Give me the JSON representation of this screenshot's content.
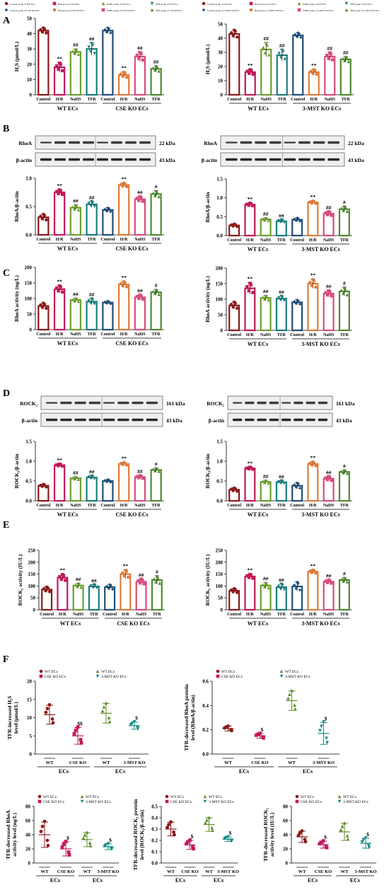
{
  "legend_top": [
    "Control group of WT ECs",
    "H/R group of WT ECs",
    "NaHS group of WT ECs",
    "TFR group of WT ECs",
    "Control group of CSE KO ECs",
    "H/R group of CSE KO ECs",
    "NaHS group of CSE KO ECs",
    "TFR group of CSE KO ECs",
    "Control group of WT ECs",
    "H/R group of WT ECs",
    "NaHS group of WT ECs",
    "TFR group of WT ECs",
    "Control group of 3-MST KO ECs",
    "H/R group of 3-MST KO ECs",
    "NaHS group of 3-MST KO ECs",
    "TFR group of 3-MST KO ECs"
  ],
  "panel_letters": [
    "A",
    "B",
    "C",
    "D",
    "E",
    "F"
  ],
  "group_labels": [
    "Control",
    "H/R",
    "NaHS",
    "TFR",
    "Control",
    "H/R",
    "NaHS",
    "TFR"
  ],
  "colors": {
    "wt_control": "#8B1A1A",
    "wt_hr": "#C2185B",
    "wt_nahs": "#6D9E2E",
    "wt_tfr": "#1B7D7D",
    "ko_control": "#1F4E79",
    "ko_hr": "#E07B39",
    "ko_nahs": "#D94C7E",
    "ko_tfr": "#4E8A2E"
  },
  "blots": [
    {
      "protein": "RhoA",
      "kda": "22 kDa",
      "loading": "β-actin",
      "loading_kda": "43 kDa"
    },
    {
      "protein": "RhoA",
      "kda": "22 kDa",
      "loading": "β-actin",
      "loading_kda": "43 kDa"
    },
    {
      "protein": "ROCK₂",
      "kda": "161 kDa",
      "loading": "β-actin",
      "loading_kda": "43 kDa"
    },
    {
      "protein": "ROCK₂",
      "kda": "161 kDa",
      "loading": "β-actin",
      "loading_kda": "43 kDa"
    }
  ],
  "chart_data": [
    {
      "id": "A_left",
      "type": "bar",
      "ylabel": "H₂S (μmol/L)",
      "ylim": [
        0,
        50
      ],
      "yticks": [
        0,
        10,
        20,
        30,
        40,
        50
      ],
      "categories": [
        "Control",
        "H/R",
        "NaHS",
        "TFR",
        "Control",
        "H/R",
        "NaHS",
        "TFR"
      ],
      "values": [
        42,
        18,
        28,
        30,
        42,
        13,
        25,
        17
      ],
      "errors": [
        2,
        3,
        2,
        4,
        2,
        2,
        3,
        2
      ],
      "marks": [
        "",
        "**",
        "##",
        "##",
        "",
        "**",
        "##",
        "##"
      ],
      "groups": [
        "WT ECs",
        "CSE KO ECs"
      ]
    },
    {
      "id": "A_right",
      "type": "bar",
      "ylabel": "H₂S (μmol/L)",
      "ylim": [
        0,
        50
      ],
      "yticks": [
        0,
        10,
        20,
        30,
        40,
        50
      ],
      "categories": [
        "Control",
        "H/R",
        "NaHS",
        "TFR",
        "Control",
        "H/R",
        "NaHS",
        "TFR"
      ],
      "values": [
        43,
        16,
        32,
        28,
        42,
        16,
        27,
        25
      ],
      "errors": [
        3,
        2,
        5,
        4,
        2,
        2,
        3,
        2
      ],
      "marks": [
        "",
        "**",
        "##",
        "##",
        "",
        "**",
        "##",
        "##"
      ],
      "groups": [
        "WT ECs",
        "3-MST KO ECs"
      ]
    },
    {
      "id": "B_left",
      "type": "bar",
      "ylabel": "RhoA/β-actin",
      "ylim": [
        0,
        1.0
      ],
      "yticks": [
        0.0,
        0.5,
        1.0
      ],
      "categories": [
        "Control",
        "H/R",
        "NaHS",
        "TFR",
        "Control",
        "H/R",
        "NaHS",
        "TFR"
      ],
      "values": [
        0.31,
        0.75,
        0.48,
        0.54,
        0.44,
        0.88,
        0.63,
        0.72
      ],
      "errors": [
        0.06,
        0.05,
        0.05,
        0.05,
        0.04,
        0.04,
        0.05,
        0.06
      ],
      "marks": [
        "",
        "**",
        "##",
        "##",
        "",
        "**",
        "##",
        "#"
      ],
      "groups": [
        "WT ECs",
        "CSE KO ECs"
      ]
    },
    {
      "id": "B_right",
      "type": "bar",
      "ylabel": "RhoA/β-actin",
      "ylim": [
        0,
        1.5
      ],
      "yticks": [
        0.0,
        0.5,
        1.0,
        1.5
      ],
      "categories": [
        "Control",
        "H/R",
        "NaHS",
        "TFR",
        "Control",
        "H/R",
        "NaHS",
        "TFR"
      ],
      "values": [
        0.27,
        0.82,
        0.43,
        0.38,
        0.42,
        0.88,
        0.58,
        0.7
      ],
      "errors": [
        0.04,
        0.04,
        0.04,
        0.04,
        0.05,
        0.04,
        0.06,
        0.08
      ],
      "marks": [
        "",
        "**",
        "##",
        "##",
        "",
        "**",
        "##",
        "#"
      ],
      "groups": [
        "WT ECs",
        "3-MST KO ECs"
      ]
    },
    {
      "id": "C_left",
      "type": "bar",
      "ylabel": "RhoA activity (ng/L)",
      "ylim": [
        0,
        200
      ],
      "yticks": [
        0,
        50,
        100,
        150,
        200
      ],
      "categories": [
        "Control",
        "H/R",
        "NaHS",
        "TFR",
        "Control",
        "H/R",
        "NaHS",
        "TFR"
      ],
      "values": [
        76,
        130,
        95,
        90,
        87,
        145,
        104,
        120
      ],
      "errors": [
        10,
        12,
        6,
        10,
        5,
        10,
        8,
        9
      ],
      "marks": [
        "",
        "**",
        "##",
        "##",
        "",
        "**",
        "##",
        "#"
      ],
      "groups": [
        "WT ECs",
        "CSE KO ECs"
      ]
    },
    {
      "id": "C_right",
      "type": "bar",
      "ylabel": "RhoA activity (ng/L)",
      "ylim": [
        0,
        200
      ],
      "yticks": [
        0,
        50,
        100,
        150,
        200
      ],
      "categories": [
        "Control",
        "H/R",
        "NaHS",
        "TFR",
        "Control",
        "H/R",
        "NaHS",
        "TFR"
      ],
      "values": [
        80,
        135,
        104,
        102,
        90,
        150,
        118,
        125
      ],
      "errors": [
        12,
        18,
        8,
        8,
        8,
        15,
        10,
        14
      ],
      "marks": [
        "",
        "**",
        "##",
        "##",
        "",
        "**",
        "##",
        "#"
      ],
      "groups": [
        "WT ECs",
        "3-MST KO ECs"
      ]
    },
    {
      "id": "D_left",
      "type": "bar",
      "ylabel": "ROCK₂/β-actin",
      "ylim": [
        0,
        1.5
      ],
      "yticks": [
        0.0,
        0.5,
        1.0,
        1.5
      ],
      "categories": [
        "Control",
        "H/R",
        "NaHS",
        "TFR",
        "Control",
        "H/R",
        "NaHS",
        "TFR"
      ],
      "values": [
        0.38,
        0.9,
        0.57,
        0.59,
        0.5,
        0.93,
        0.6,
        0.78
      ],
      "errors": [
        0.04,
        0.03,
        0.04,
        0.04,
        0.04,
        0.04,
        0.04,
        0.05
      ],
      "marks": [
        "",
        "**",
        "##",
        "##",
        "",
        "**",
        "##",
        "#"
      ],
      "groups": [
        "WT ECs",
        "CSE KO ECs"
      ]
    },
    {
      "id": "D_right",
      "type": "bar",
      "ylabel": "ROCK₂/β-actin",
      "ylim": [
        0,
        1.5
      ],
      "yticks": [
        0.0,
        0.5,
        1.0,
        1.5
      ],
      "categories": [
        "Control",
        "H/R",
        "NaHS",
        "TFR",
        "Control",
        "H/R",
        "NaHS",
        "TFR"
      ],
      "values": [
        0.28,
        0.82,
        0.48,
        0.47,
        0.38,
        0.93,
        0.56,
        0.73
      ],
      "errors": [
        0.05,
        0.03,
        0.04,
        0.04,
        0.08,
        0.06,
        0.06,
        0.05
      ],
      "marks": [
        "",
        "**",
        "##",
        "##",
        "",
        "**",
        "##",
        "#"
      ],
      "groups": [
        "WT ECs",
        "3-MST KO ECs"
      ]
    },
    {
      "id": "E_left",
      "type": "bar",
      "ylabel": "ROCK₂ activity (IU/L)",
      "ylim": [
        0,
        250
      ],
      "yticks": [
        0,
        50,
        100,
        150,
        200,
        250
      ],
      "categories": [
        "Control",
        "H/R",
        "NaHS",
        "TFR",
        "Control",
        "H/R",
        "NaHS",
        "TFR"
      ],
      "values": [
        85,
        135,
        102,
        98,
        95,
        150,
        118,
        125
      ],
      "errors": [
        12,
        15,
        10,
        8,
        12,
        18,
        12,
        18
      ],
      "marks": [
        "",
        "**",
        "##",
        "##",
        "",
        "**",
        "##",
        "#"
      ],
      "groups": [
        "WT ECs",
        "CSE KO ECs"
      ]
    },
    {
      "id": "E_right",
      "type": "bar",
      "ylabel": "ROCK₂ activity (IU/L)",
      "ylim": [
        0,
        250
      ],
      "yticks": [
        0,
        50,
        100,
        150,
        200,
        250
      ],
      "categories": [
        "Control",
        "H/R",
        "NaHS",
        "TFR",
        "Control",
        "H/R",
        "NaHS",
        "TFR"
      ],
      "values": [
        80,
        140,
        102,
        95,
        98,
        160,
        118,
        125
      ],
      "errors": [
        10,
        10,
        12,
        14,
        20,
        8,
        8,
        10
      ],
      "marks": [
        "",
        "**",
        "##",
        "##",
        "",
        "**",
        "##",
        "#"
      ],
      "groups": [
        "WT ECs",
        "3-MST KO ECs"
      ]
    },
    {
      "id": "F1",
      "type": "scatter",
      "ylabel": "TFR-increased H₂S level (μmol/L)",
      "ylim": [
        0,
        20
      ],
      "yticks": [
        0,
        5,
        10,
        15,
        20
      ],
      "legend": [
        "WT ECs",
        "CSE KO ECs",
        "WT ECs",
        "3-MST KO ECs"
      ],
      "categories": [
        "WT",
        "CSE KO",
        "WT",
        "3-MST KO"
      ],
      "group_labels": [
        "ECs",
        "ECs"
      ],
      "means": [
        10.8,
        5.0,
        11.2,
        7.8
      ],
      "sd": [
        2.6,
        2.3,
        2.7,
        1.0
      ],
      "marks": [
        "",
        "$$",
        "",
        "$"
      ]
    },
    {
      "id": "F2",
      "type": "scatter",
      "ylabel": "TFR-decreased RhoA protein level (RhoA/β-actin)",
      "ylim": [
        0,
        0.6
      ],
      "yticks": [
        0.0,
        0.2,
        0.4,
        0.6
      ],
      "legend": [
        "WT ECs",
        "CSE KO ECs",
        "WT ECs",
        "3-MST KO ECs"
      ],
      "categories": [
        "WT",
        "CSE KO",
        "WT",
        "3-MST KO"
      ],
      "group_labels": [
        "ECs",
        "ECs"
      ],
      "means": [
        0.21,
        0.15,
        0.44,
        0.17
      ],
      "sd": [
        0.02,
        0.02,
        0.08,
        0.09
      ],
      "marks": [
        "",
        "$",
        "",
        "$"
      ]
    },
    {
      "id": "F3",
      "type": "scatter",
      "ylabel": "TFR-decreased RhoA activity level (ng/L)",
      "ylim": [
        0,
        80
      ],
      "yticks": [
        0,
        20,
        40,
        60,
        80
      ],
      "legend": [
        "WT ECs",
        "CSE KO ECs",
        "WT ECs",
        "3-MST KO ECs"
      ],
      "categories": [
        "WT",
        "CSE KO",
        "WT",
        "3-MST KO"
      ],
      "group_labels": [
        "ECs",
        "ECs"
      ],
      "means": [
        40,
        20,
        33,
        23
      ],
      "sd": [
        18,
        10,
        10,
        4
      ],
      "marks": [
        "",
        "$",
        "",
        "$"
      ]
    },
    {
      "id": "F4",
      "type": "scatter",
      "ylabel": "TFR-decreased ROCK₂ protein level (ROCK₂/β-actin)",
      "ylim": [
        0,
        0.5
      ],
      "yticks": [
        0.0,
        0.1,
        0.2,
        0.3,
        0.4,
        0.5
      ],
      "legend": [
        "WT ECs",
        "CSE KO ECs",
        "WT ECs",
        "3-MST KO ECs"
      ],
      "categories": [
        "WT",
        "CSE KO",
        "WT",
        "3-MST KO"
      ],
      "group_labels": [
        "ECs",
        "ECs"
      ],
      "means": [
        0.3,
        0.16,
        0.34,
        0.21
      ],
      "sd": [
        0.06,
        0.04,
        0.06,
        0.02
      ],
      "marks": [
        "",
        "$",
        "",
        "$"
      ]
    },
    {
      "id": "F5",
      "type": "scatter",
      "ylabel": "TFR-decreased ROCK₂ activity level (IU/L)",
      "ylim": [
        0,
        80
      ],
      "yticks": [
        0,
        20,
        40,
        60,
        80
      ],
      "legend": [
        "WT ECs",
        "CSE KO ECs",
        "WT ECs",
        "3-MST KO ECs"
      ],
      "categories": [
        "WT",
        "CSE KO",
        "WT",
        "3-MST KO"
      ],
      "group_labels": [
        "ECs",
        "ECs"
      ],
      "means": [
        37,
        26,
        44,
        28
      ],
      "sd": [
        8,
        5,
        12,
        7
      ],
      "marks": [
        "",
        "$",
        "",
        "$"
      ]
    }
  ]
}
